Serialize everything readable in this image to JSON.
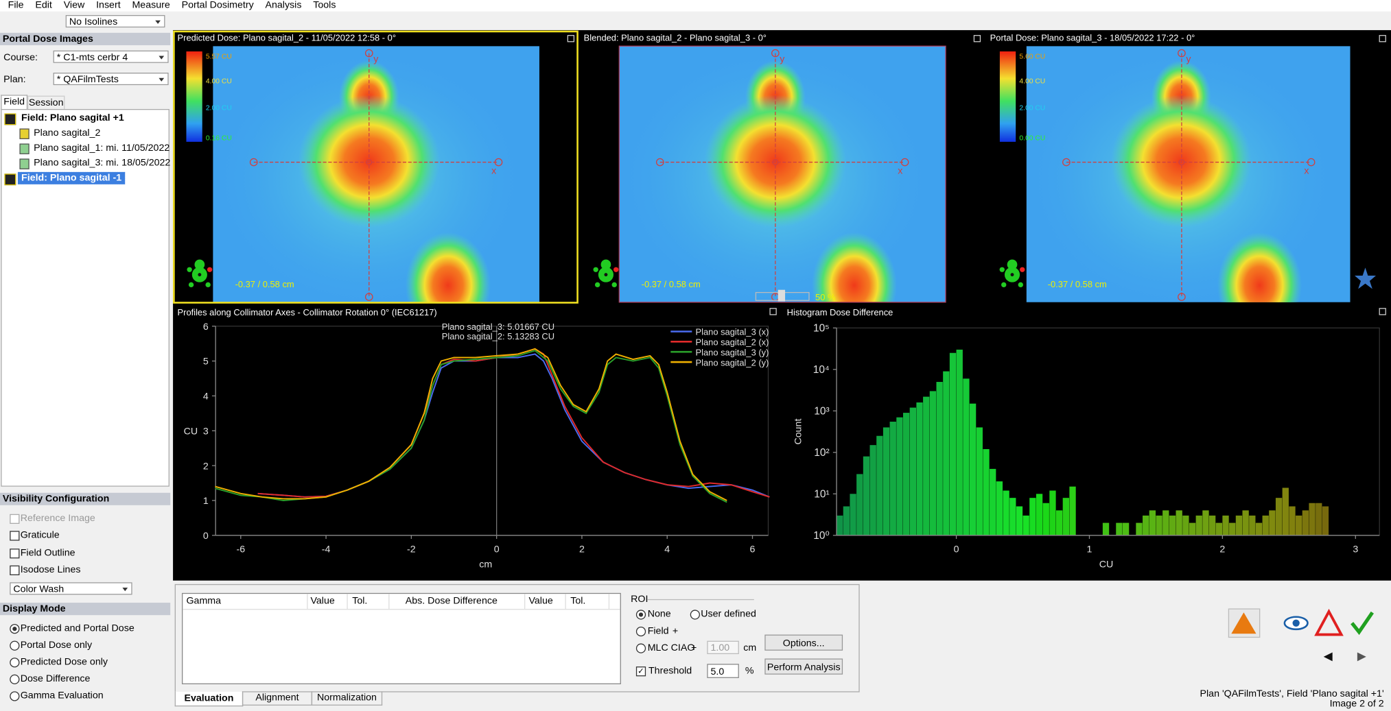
{
  "menu": [
    "File",
    "Edit",
    "View",
    "Insert",
    "Measure",
    "Portal Dosimetry",
    "Analysis",
    "Tools"
  ],
  "toolbar": {
    "isolines": "No Isolines"
  },
  "sidebar": {
    "title": "Portal Dose Images",
    "course_label": "Course:",
    "course": "* C1-mts cerbr 4",
    "plan_label": "Plan:",
    "plan": "* QAFilmTests",
    "tabs": [
      "Field",
      "Session"
    ],
    "tree": [
      "Field: Plano sagital +1",
      "Plano sagital_2",
      "Plano sagital_1: mi. 11/05/2022",
      "Plano sagital_3: mi. 18/05/2022",
      "Field: Plano sagital -1"
    ],
    "visibility": {
      "title": "Visibility Configuration",
      "options": [
        "Reference Image",
        "Graticule",
        "Field Outline",
        "Isodose Lines"
      ],
      "mode": "Color Wash"
    },
    "display_mode": {
      "title": "Display Mode",
      "options": [
        "Predicted and Portal Dose",
        "Portal Dose only",
        "Predicted Dose only",
        "Dose Difference",
        "Gamma Evaluation"
      ]
    }
  },
  "images": [
    {
      "title": "Predicted Dose: Plano sagital_2 - 11/05/2022 12:58 - 0°",
      "colorbar": [
        "5.57 CU",
        "4.00 CU",
        "2.00 CU",
        "0.16 CU"
      ],
      "coords": "-0.37 /  0.58 cm",
      "axes": [
        "y",
        "x"
      ]
    },
    {
      "title": "Blended: Plano sagital_2 - Plano sagital_3 - 0°",
      "blend": "50 %",
      "coords": "-0.37 /  0.58 cm",
      "axes": [
        "y",
        "x"
      ]
    },
    {
      "title": "Portal Dose: Plano sagital_3 - 18/05/2022 17:22 - 0°",
      "colorbar": [
        "5.60 CU",
        "4.00 CU",
        "2.00 CU",
        "0.00 CU"
      ],
      "coords": "-0.37 /  0.58 cm",
      "axes": [
        "y",
        "x"
      ]
    }
  ],
  "chart_data": [
    {
      "type": "line",
      "title": "Profiles along Collimator Axes - Collimator Rotation 0° (IEC61217)",
      "x_label": "cm",
      "y_label": "CU",
      "annotations": [
        "Plano sagital_3: 5.01667 CU",
        "Plano sagital_2: 5.13283 CU"
      ],
      "legend": "top-right",
      "xlim": [
        -6.59,
        6.37
      ],
      "ylim": [
        0,
        6
      ],
      "xticks": [
        -6,
        -4,
        -2,
        0,
        2,
        4,
        6
      ],
      "yticks": [
        0,
        1,
        2,
        3,
        4,
        5,
        6
      ],
      "series": [
        {
          "name": "Plano sagital_3 (x)",
          "color": "#4a6cf0",
          "x": [
            -5.6,
            -5,
            -4.5,
            -4,
            -3.5,
            -3,
            -2.5,
            -2,
            -1.7,
            -1.5,
            -1.3,
            -1,
            -0.5,
            0,
            0.5,
            0.9,
            1.1,
            1.3,
            1.6,
            2,
            2.5,
            3,
            3.5,
            4,
            4.5,
            5,
            5.5,
            6,
            6.4
          ],
          "values": [
            1.2,
            1.15,
            1.1,
            1.12,
            1.3,
            1.55,
            1.9,
            2.5,
            3.3,
            4.1,
            4.8,
            5.0,
            5.0,
            5.1,
            5.1,
            5.2,
            5.0,
            4.5,
            3.6,
            2.7,
            2.1,
            1.8,
            1.6,
            1.45,
            1.35,
            1.4,
            1.45,
            1.3,
            1.1
          ]
        },
        {
          "name": "Plano sagital_2 (x)",
          "color": "#e02a2a",
          "x": [
            -5.6,
            -5,
            -4.5,
            -4,
            -3.5,
            -3,
            -2.5,
            -2,
            -1.7,
            -1.5,
            -1.3,
            -1,
            -0.5,
            0,
            0.5,
            0.9,
            1.1,
            1.3,
            1.6,
            2,
            2.5,
            3,
            3.5,
            4,
            4.5,
            5,
            5.5,
            6,
            6.4
          ],
          "values": [
            1.2,
            1.15,
            1.1,
            1.12,
            1.3,
            1.55,
            1.95,
            2.6,
            3.5,
            4.3,
            4.9,
            5.05,
            5.0,
            5.1,
            5.2,
            5.35,
            5.2,
            4.6,
            3.7,
            2.8,
            2.1,
            1.8,
            1.6,
            1.45,
            1.4,
            1.5,
            1.45,
            1.25,
            1.1
          ]
        },
        {
          "name": "Plano sagital_3 (y)",
          "color": "#2aa02a",
          "x": [
            -6.6,
            -6,
            -5.5,
            -5,
            -4.5,
            -4,
            -3.5,
            -3,
            -2.5,
            -2,
            -1.7,
            -1.5,
            -1.3,
            -1,
            -0.5,
            0,
            0.5,
            0.9,
            1.2,
            1.5,
            1.8,
            2.1,
            2.4,
            2.6,
            2.8,
            3.2,
            3.6,
            3.8,
            4,
            4.3,
            4.6,
            5,
            5.4
          ],
          "values": [
            1.35,
            1.15,
            1.1,
            1.0,
            1.05,
            1.1,
            1.3,
            1.55,
            1.9,
            2.5,
            3.3,
            4.3,
            4.9,
            5.0,
            5.05,
            5.1,
            5.15,
            5.3,
            5.0,
            4.2,
            3.7,
            3.5,
            4.1,
            4.9,
            5.1,
            5.0,
            5.1,
            4.8,
            4.0,
            2.6,
            1.7,
            1.2,
            0.95
          ]
        },
        {
          "name": "Plano sagital_2 (y)",
          "color": "#f0b000",
          "x": [
            -6.6,
            -6,
            -5.5,
            -5,
            -4.5,
            -4,
            -3.5,
            -3,
            -2.5,
            -2,
            -1.7,
            -1.5,
            -1.3,
            -1,
            -0.5,
            0,
            0.5,
            0.9,
            1.2,
            1.5,
            1.8,
            2.1,
            2.4,
            2.6,
            2.8,
            3.2,
            3.6,
            3.8,
            4,
            4.3,
            4.6,
            5,
            5.4
          ],
          "values": [
            1.4,
            1.2,
            1.1,
            1.05,
            1.05,
            1.1,
            1.3,
            1.55,
            1.95,
            2.6,
            3.5,
            4.5,
            5.0,
            5.1,
            5.1,
            5.15,
            5.2,
            5.35,
            5.1,
            4.3,
            3.75,
            3.55,
            4.2,
            5.0,
            5.2,
            5.05,
            5.15,
            4.9,
            4.1,
            2.7,
            1.75,
            1.25,
            1.0
          ]
        }
      ]
    },
    {
      "type": "histogram",
      "title": "Histogram Dose Difference",
      "x_label": "CU",
      "y_label": "Count",
      "log_y": true,
      "xlim": [
        -0.9,
        3.18
      ],
      "ylim": [
        1,
        100000
      ],
      "xticks": [
        0,
        1,
        2,
        3
      ],
      "yticks": [
        {
          "value": 1,
          "label": "10⁰"
        },
        {
          "value": 10,
          "label": "10¹"
        },
        {
          "value": 100,
          "label": "10²"
        },
        {
          "value": 1000,
          "label": "10³"
        },
        {
          "value": 10000,
          "label": "10⁴"
        },
        {
          "value": 100000,
          "label": "10⁵"
        }
      ],
      "bins": [
        -0.9,
        -0.85,
        -0.8,
        -0.75,
        -0.7,
        -0.65,
        -0.6,
        -0.55,
        -0.5,
        -0.45,
        -0.4,
        -0.35,
        -0.3,
        -0.25,
        -0.2,
        -0.15,
        -0.1,
        -0.05,
        0,
        0.05,
        0.1,
        0.15,
        0.2,
        0.25,
        0.3,
        0.35,
        0.4,
        0.45,
        0.5,
        0.55,
        0.6,
        0.65,
        0.7,
        0.75,
        0.8,
        0.85,
        0.9,
        0.95,
        1,
        1.05,
        1.1,
        1.15,
        1.2,
        1.25,
        1.3,
        1.35,
        1.4,
        1.45,
        1.5,
        1.55,
        1.6,
        1.65,
        1.7,
        1.75,
        1.8,
        1.85,
        1.9,
        1.95,
        2,
        2.05,
        2.1,
        2.15,
        2.2,
        2.25,
        2.3,
        2.35,
        2.4,
        2.45,
        2.5,
        2.55,
        2.6,
        2.65,
        2.7,
        2.75,
        2.8
      ],
      "values": [
        3,
        5,
        10,
        30,
        80,
        150,
        250,
        400,
        550,
        700,
        900,
        1200,
        1600,
        2200,
        3000,
        5000,
        9000,
        25000,
        30000,
        6000,
        1500,
        400,
        120,
        40,
        20,
        12,
        8,
        5,
        3,
        8,
        10,
        6,
        12,
        4,
        8,
        15,
        0,
        0,
        0,
        1,
        2,
        0,
        2,
        2,
        0,
        2,
        3,
        4,
        3,
        4,
        3,
        4,
        3,
        2,
        3,
        4,
        3,
        2,
        3,
        2,
        3,
        4,
        3,
        2,
        3,
        4,
        8,
        14,
        5,
        3,
        4,
        6,
        6,
        5
      ]
    }
  ],
  "evaluation": {
    "table_headers": [
      "Gamma",
      "Value",
      "Tol.",
      "Abs. Dose Difference",
      "Value",
      "Tol."
    ],
    "roi_title": "ROI",
    "roi_options": [
      "None",
      "User defined",
      "Field",
      "MLC CIAO"
    ],
    "plus": "+",
    "mlc_value": "1.00",
    "mlc_unit": "cm",
    "threshold": "Threshold",
    "threshold_value": "5.0",
    "threshold_unit": "%",
    "buttons": [
      "Options...",
      "Perform Analysis"
    ]
  },
  "tabs": [
    "Evaluation",
    "Alignment",
    "Normalization"
  ],
  "status": [
    "Plan 'QAFilmTests', Field 'Plano sagital +1'",
    "Image 2 of 2"
  ]
}
